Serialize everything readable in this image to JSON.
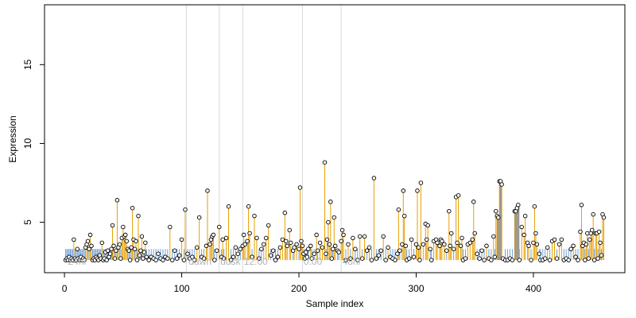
{
  "chart_data": {
    "type": "scatter",
    "title": "",
    "xlabel": "Sample index",
    "ylabel": "Expression",
    "xlim": [
      -17,
      478
    ],
    "ylim": [
      1.8,
      18.8
    ],
    "x_ticks": [
      0,
      100,
      200,
      300,
      400
    ],
    "y_ticks": [
      5,
      10,
      15
    ],
    "baseline": 2.6,
    "grid": false,
    "phase_lines": [
      104,
      132,
      152,
      203,
      236
    ],
    "phase_labels": [
      {
        "x": 3,
        "label": "24hr"
      },
      {
        "x": 106,
        "label": "dawn"
      },
      {
        "x": 133,
        "label": "dusk"
      },
      {
        "x": 153,
        "label": "12:00"
      },
      {
        "x": 204,
        "label": "0:00"
      },
      {
        "x": 237,
        "label": "48hr"
      }
    ],
    "colors": {
      "high_stem": "#e69f00",
      "low_stem": "#6f9fd8",
      "gray_band": "#999999",
      "phase_line": "#d9d9d9",
      "phase_label": "#b3b3b3",
      "point_stroke": "#000000",
      "point_fill": "#ffffff"
    },
    "gray_band_x": [
      370,
      372,
      374,
      385,
      387,
      389
    ],
    "points": [
      [
        1,
        2.6
      ],
      [
        2,
        2.7
      ],
      [
        3,
        2.6
      ],
      [
        4,
        2.8
      ],
      [
        5,
        2.6
      ],
      [
        6,
        2.7
      ],
      [
        7,
        2.6
      ],
      [
        8,
        3.9
      ],
      [
        9,
        2.7
      ],
      [
        10,
        2.6
      ],
      [
        11,
        3.3
      ],
      [
        12,
        2.7
      ],
      [
        13,
        2.6
      ],
      [
        14,
        2.8
      ],
      [
        15,
        2.6
      ],
      [
        16,
        2.7
      ],
      [
        17,
        2.6
      ],
      [
        18,
        3.4
      ],
      [
        19,
        3.6
      ],
      [
        20,
        3.8
      ],
      [
        21,
        3.3
      ],
      [
        22,
        4.2
      ],
      [
        23,
        3.5
      ],
      [
        24,
        2.6
      ],
      [
        25,
        2.7
      ],
      [
        26,
        2.6
      ],
      [
        27,
        2.8
      ],
      [
        28,
        2.7
      ],
      [
        29,
        2.6
      ],
      [
        30,
        2.9
      ],
      [
        31,
        2.7
      ],
      [
        32,
        3.7
      ],
      [
        33,
        2.6
      ],
      [
        34,
        2.7
      ],
      [
        35,
        3.1
      ],
      [
        36,
        2.6
      ],
      [
        37,
        3.2
      ],
      [
        38,
        2.8
      ],
      [
        39,
        3.0
      ],
      [
        40,
        3.3
      ],
      [
        41,
        4.8
      ],
      [
        42,
        3.5
      ],
      [
        43,
        2.7
      ],
      [
        44,
        3.2
      ],
      [
        45,
        6.4
      ],
      [
        46,
        3.4
      ],
      [
        47,
        3.6
      ],
      [
        48,
        2.7
      ],
      [
        49,
        4.0
      ],
      [
        50,
        4.7
      ],
      [
        51,
        4.1
      ],
      [
        52,
        4.2
      ],
      [
        53,
        3.8
      ],
      [
        54,
        3.3
      ],
      [
        55,
        3.2
      ],
      [
        56,
        2.6
      ],
      [
        57,
        3.4
      ],
      [
        58,
        5.9
      ],
      [
        59,
        3.9
      ],
      [
        60,
        3.3
      ],
      [
        61,
        3.8
      ],
      [
        62,
        2.6
      ],
      [
        63,
        5.4
      ],
      [
        64,
        2.9
      ],
      [
        65,
        3.2
      ],
      [
        66,
        4.1
      ],
      [
        67,
        2.7
      ],
      [
        68,
        3.1
      ],
      [
        69,
        3.7
      ],
      [
        70,
        2.8
      ],
      [
        72,
        2.6
      ],
      [
        74,
        2.8
      ],
      [
        76,
        2.7
      ],
      [
        78,
        2.6
      ],
      [
        80,
        3.0
      ],
      [
        82,
        2.7
      ],
      [
        84,
        2.6
      ],
      [
        86,
        2.8
      ],
      [
        88,
        2.7
      ],
      [
        90,
        4.7
      ],
      [
        92,
        2.6
      ],
      [
        94,
        3.2
      ],
      [
        96,
        2.7
      ],
      [
        98,
        2.9
      ],
      [
        100,
        3.9
      ],
      [
        102,
        2.6
      ],
      [
        103,
        5.8
      ],
      [
        105,
        3.0
      ],
      [
        107,
        2.7
      ],
      [
        109,
        2.8
      ],
      [
        111,
        2.6
      ],
      [
        113,
        3.4
      ],
      [
        115,
        5.3
      ],
      [
        117,
        2.8
      ],
      [
        119,
        2.7
      ],
      [
        121,
        3.5
      ],
      [
        122,
        7.0
      ],
      [
        124,
        3.6
      ],
      [
        125,
        3.9
      ],
      [
        126,
        4.1
      ],
      [
        127,
        4.2
      ],
      [
        128,
        2.6
      ],
      [
        130,
        3.2
      ],
      [
        132,
        4.7
      ],
      [
        134,
        2.8
      ],
      [
        135,
        3.9
      ],
      [
        136,
        2.7
      ],
      [
        138,
        4.0
      ],
      [
        140,
        6.0
      ],
      [
        142,
        2.6
      ],
      [
        144,
        2.8
      ],
      [
        146,
        3.4
      ],
      [
        148,
        3.0
      ],
      [
        150,
        3.3
      ],
      [
        152,
        3.5
      ],
      [
        153,
        4.2
      ],
      [
        154,
        3.6
      ],
      [
        156,
        3.8
      ],
      [
        157,
        6.0
      ],
      [
        158,
        4.3
      ],
      [
        160,
        2.8
      ],
      [
        162,
        5.4
      ],
      [
        164,
        4.0
      ],
      [
        166,
        2.7
      ],
      [
        168,
        3.3
      ],
      [
        170,
        3.6
      ],
      [
        172,
        4.0
      ],
      [
        174,
        4.8
      ],
      [
        176,
        2.9
      ],
      [
        178,
        3.2
      ],
      [
        180,
        2.6
      ],
      [
        182,
        2.8
      ],
      [
        184,
        3.4
      ],
      [
        186,
        3.9
      ],
      [
        188,
        5.6
      ],
      [
        189,
        3.8
      ],
      [
        190,
        3.5
      ],
      [
        192,
        4.5
      ],
      [
        193,
        3.7
      ],
      [
        195,
        3.2
      ],
      [
        196,
        3.4
      ],
      [
        198,
        3.6
      ],
      [
        200,
        3.3
      ],
      [
        201,
        7.2
      ],
      [
        202,
        3.8
      ],
      [
        203,
        3.5
      ],
      [
        204,
        3.0
      ],
      [
        205,
        2.7
      ],
      [
        206,
        3.1
      ],
      [
        207,
        2.8
      ],
      [
        208,
        3.3
      ],
      [
        210,
        3.5
      ],
      [
        211,
        2.7
      ],
      [
        213,
        3.0
      ],
      [
        215,
        4.2
      ],
      [
        216,
        3.2
      ],
      [
        218,
        3.7
      ],
      [
        220,
        3.4
      ],
      [
        222,
        8.8
      ],
      [
        223,
        3.0
      ],
      [
        224,
        3.9
      ],
      [
        225,
        5.0
      ],
      [
        226,
        3.6
      ],
      [
        227,
        6.3
      ],
      [
        228,
        2.7
      ],
      [
        229,
        3.3
      ],
      [
        230,
        5.3
      ],
      [
        231,
        3.5
      ],
      [
        233,
        3.2
      ],
      [
        234,
        3.1
      ],
      [
        236,
        3.8
      ],
      [
        237,
        4.5
      ],
      [
        238,
        4.2
      ],
      [
        240,
        2.6
      ],
      [
        242,
        3.6
      ],
      [
        244,
        2.7
      ],
      [
        246,
        4.0
      ],
      [
        248,
        3.3
      ],
      [
        250,
        2.6
      ],
      [
        252,
        4.1
      ],
      [
        254,
        2.7
      ],
      [
        256,
        4.1
      ],
      [
        258,
        3.2
      ],
      [
        260,
        3.4
      ],
      [
        262,
        2.6
      ],
      [
        264,
        7.8
      ],
      [
        266,
        2.7
      ],
      [
        268,
        2.9
      ],
      [
        270,
        3.2
      ],
      [
        272,
        4.1
      ],
      [
        274,
        2.6
      ],
      [
        276,
        3.4
      ],
      [
        278,
        2.8
      ],
      [
        280,
        2.7
      ],
      [
        282,
        2.6
      ],
      [
        284,
        3.0
      ],
      [
        285,
        5.8
      ],
      [
        286,
        3.2
      ],
      [
        288,
        3.6
      ],
      [
        289,
        7.0
      ],
      [
        290,
        5.4
      ],
      [
        291,
        3.5
      ],
      [
        292,
        2.6
      ],
      [
        294,
        2.7
      ],
      [
        296,
        3.9
      ],
      [
        298,
        2.8
      ],
      [
        300,
        3.6
      ],
      [
        301,
        7.0
      ],
      [
        302,
        3.4
      ],
      [
        303,
        2.6
      ],
      [
        304,
        7.5
      ],
      [
        306,
        3.6
      ],
      [
        308,
        4.9
      ],
      [
        309,
        3.9
      ],
      [
        310,
        4.8
      ],
      [
        312,
        3.3
      ],
      [
        313,
        2.6
      ],
      [
        315,
        3.8
      ],
      [
        317,
        3.9
      ],
      [
        318,
        3.7
      ],
      [
        320,
        3.5
      ],
      [
        321,
        3.9
      ],
      [
        322,
        3.8
      ],
      [
        324,
        3.6
      ],
      [
        326,
        3.2
      ],
      [
        328,
        5.7
      ],
      [
        329,
        3.5
      ],
      [
        330,
        4.3
      ],
      [
        332,
        3.3
      ],
      [
        334,
        6.6
      ],
      [
        335,
        3.7
      ],
      [
        336,
        6.7
      ],
      [
        338,
        3.5
      ],
      [
        339,
        4.0
      ],
      [
        340,
        2.6
      ],
      [
        342,
        2.7
      ],
      [
        344,
        3.6
      ],
      [
        346,
        3.7
      ],
      [
        348,
        3.9
      ],
      [
        349,
        6.3
      ],
      [
        350,
        4.3
      ],
      [
        352,
        3.0
      ],
      [
        354,
        2.7
      ],
      [
        356,
        3.2
      ],
      [
        358,
        2.6
      ],
      [
        360,
        3.5
      ],
      [
        362,
        2.7
      ],
      [
        364,
        2.6
      ],
      [
        366,
        4.1
      ],
      [
        367,
        2.8
      ],
      [
        368,
        5.7
      ],
      [
        369,
        5.4
      ],
      [
        370,
        5.3
      ],
      [
        371,
        7.6
      ],
      [
        372,
        7.6
      ],
      [
        373,
        7.4
      ],
      [
        374,
        2.7
      ],
      [
        376,
        2.6
      ],
      [
        378,
        2.6
      ],
      [
        380,
        2.7
      ],
      [
        382,
        2.6
      ],
      [
        384,
        5.7
      ],
      [
        385,
        5.7
      ],
      [
        386,
        5.9
      ],
      [
        387,
        6.1
      ],
      [
        388,
        2.6
      ],
      [
        390,
        4.7
      ],
      [
        392,
        4.2
      ],
      [
        393,
        5.4
      ],
      [
        395,
        3.7
      ],
      [
        396,
        3.5
      ],
      [
        398,
        2.6
      ],
      [
        400,
        3.7
      ],
      [
        401,
        6.0
      ],
      [
        402,
        4.3
      ],
      [
        403,
        3.6
      ],
      [
        405,
        3.0
      ],
      [
        406,
        2.6
      ],
      [
        408,
        2.6
      ],
      [
        410,
        2.7
      ],
      [
        412,
        3.4
      ],
      [
        414,
        2.6
      ],
      [
        416,
        3.8
      ],
      [
        418,
        3.9
      ],
      [
        420,
        2.7
      ],
      [
        422,
        3.6
      ],
      [
        424,
        3.9
      ],
      [
        426,
        2.6
      ],
      [
        428,
        2.7
      ],
      [
        430,
        2.6
      ],
      [
        432,
        3.3
      ],
      [
        434,
        3.5
      ],
      [
        436,
        2.8
      ],
      [
        438,
        2.6
      ],
      [
        440,
        4.4
      ],
      [
        441,
        6.1
      ],
      [
        442,
        3.5
      ],
      [
        443,
        3.7
      ],
      [
        444,
        2.6
      ],
      [
        445,
        3.6
      ],
      [
        446,
        4.3
      ],
      [
        447,
        2.7
      ],
      [
        448,
        3.9
      ],
      [
        449,
        4.3
      ],
      [
        450,
        4.5
      ],
      [
        451,
        5.5
      ],
      [
        452,
        2.6
      ],
      [
        453,
        4.3
      ],
      [
        454,
        4.3
      ],
      [
        455,
        2.7
      ],
      [
        456,
        4.4
      ],
      [
        457,
        3.7
      ],
      [
        458,
        2.9
      ],
      [
        459,
        5.5
      ],
      [
        460,
        5.3
      ]
    ]
  }
}
